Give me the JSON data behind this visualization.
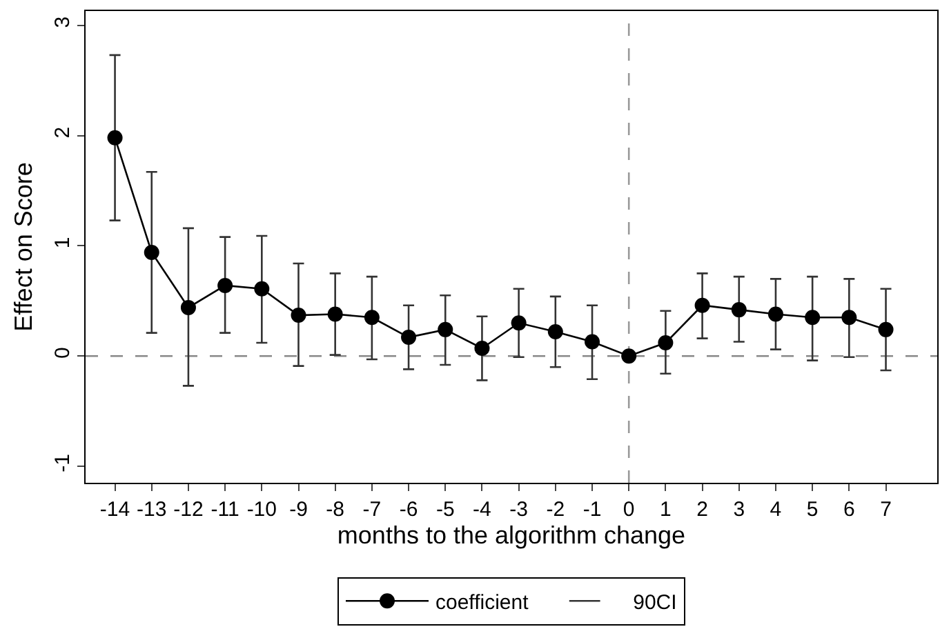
{
  "chart_data": {
    "type": "line",
    "xlabel": "months to the algorithm change",
    "ylabel": "Effect on Score",
    "annotations": [
      "90CI"
    ],
    "x": [
      -14,
      -13,
      -12,
      -11,
      -10,
      -9,
      -8,
      -7,
      -6,
      -5,
      -4,
      -3,
      -2,
      -1,
      0,
      1,
      2,
      3,
      4,
      5,
      6,
      7
    ],
    "series": [
      {
        "name": "coefficient",
        "color": "#000000",
        "values": [
          1.98,
          0.94,
          0.44,
          0.64,
          0.61,
          0.37,
          0.38,
          0.35,
          0.17,
          0.24,
          0.07,
          0.3,
          0.22,
          0.13,
          0,
          0.12,
          0.46,
          0.42,
          0.38,
          0.35,
          0.35,
          0.24
        ],
        "errors": [
          [
            1.23,
            2.73
          ],
          [
            0.21,
            1.67
          ],
          [
            -0.27,
            1.16
          ],
          [
            0.21,
            1.08
          ],
          [
            0.12,
            1.09
          ],
          [
            -0.09,
            0.84
          ],
          [
            0.01,
            0.75
          ],
          [
            -0.03,
            0.72
          ],
          [
            -0.12,
            0.46
          ],
          [
            -0.08,
            0.55
          ],
          [
            -0.22,
            0.36
          ],
          [
            -0.01,
            0.61
          ],
          [
            -0.1,
            0.54
          ],
          [
            -0.21,
            0.46
          ],
          null,
          [
            -0.16,
            0.41
          ],
          [
            0.16,
            0.75
          ],
          [
            0.13,
            0.72
          ],
          [
            0.06,
            0.7
          ],
          [
            -0.04,
            0.72
          ],
          [
            -0.01,
            0.7
          ],
          [
            -0.13,
            0.61
          ]
        ]
      }
    ],
    "xlim": [
      -14.8,
      8.4
    ],
    "xticks": [
      -14,
      -13,
      -12,
      -11,
      -10,
      -9,
      -8,
      -7,
      -6,
      -5,
      -4,
      -3,
      -2,
      -1,
      0,
      1,
      2,
      3,
      4,
      5,
      6,
      7
    ],
    "ylim": [
      -1.15,
      3.13
    ],
    "yticks": [
      -1,
      0,
      1,
      2,
      3
    ],
    "ref_lines": [
      {
        "axis": "y",
        "value": 0,
        "color": "#888888",
        "line_style": "dashed"
      },
      {
        "axis": "x",
        "value": 0,
        "color": "#999999",
        "line_style": "dashed"
      }
    ],
    "grid": false,
    "legend": "bottom",
    "marker": "circle",
    "line_style": "solid"
  }
}
